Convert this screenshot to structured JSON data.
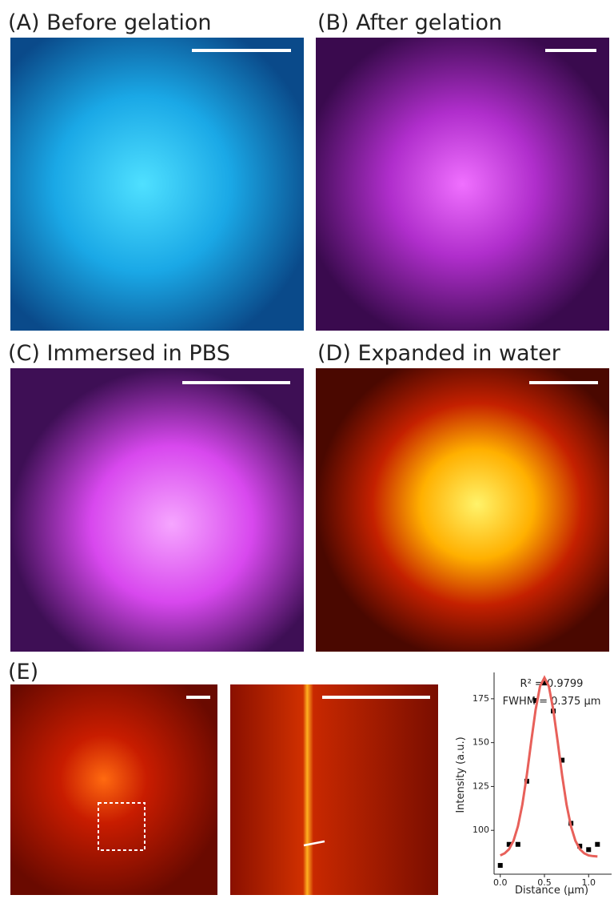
{
  "panels": {
    "a": "(A) Before gelation",
    "b": "(B) After gelation",
    "c": "(C) Immersed in PBS",
    "d": "(D) Expanded in water",
    "e": "(E)"
  },
  "chart_data": {
    "type": "scatter",
    "annotations": [
      "R² = 0.9799",
      "FWHM = 0.375 μm"
    ],
    "x_label": "Distance (μm)",
    "y_label": "Intensity (a.u.)",
    "xlim": [
      -0.07,
      1.26
    ],
    "ylim": [
      75,
      190
    ],
    "xticks": [
      {
        "value": 0,
        "label": "0.0"
      },
      {
        "value": 0.5,
        "label": "0.5"
      },
      {
        "value": 1,
        "label": "1.0"
      }
    ],
    "yticks": [
      100,
      125,
      150,
      175
    ],
    "series": [
      {
        "mode": "markers",
        "color": "#000000",
        "x": [
          0.0,
          0.1,
          0.2,
          0.3,
          0.4,
          0.5,
          0.6,
          0.7,
          0.8,
          0.9,
          1.0,
          1.1
        ],
        "values": [
          80,
          92,
          92,
          128,
          174,
          184,
          168,
          140,
          104,
          91,
          89,
          92
        ]
      },
      {
        "mode": "line",
        "color": "#e8605a",
        "x": [
          0,
          0.05,
          0.1,
          0.15,
          0.2,
          0.25,
          0.3,
          0.35,
          0.4,
          0.45,
          0.5,
          0.55,
          0.6,
          0.65,
          0.7,
          0.75,
          0.8,
          0.85,
          0.9,
          0.95,
          1.0,
          1.05,
          1.1
        ],
        "values": [
          85.7,
          86.9,
          89.3,
          94.1,
          102.3,
          114.7,
          131.3,
          150.5,
          168.7,
          182.1,
          187,
          182.1,
          168.7,
          150.5,
          131.3,
          114.7,
          102.3,
          94.1,
          89.3,
          86.9,
          85.7,
          85.3,
          85.1
        ]
      }
    ]
  }
}
